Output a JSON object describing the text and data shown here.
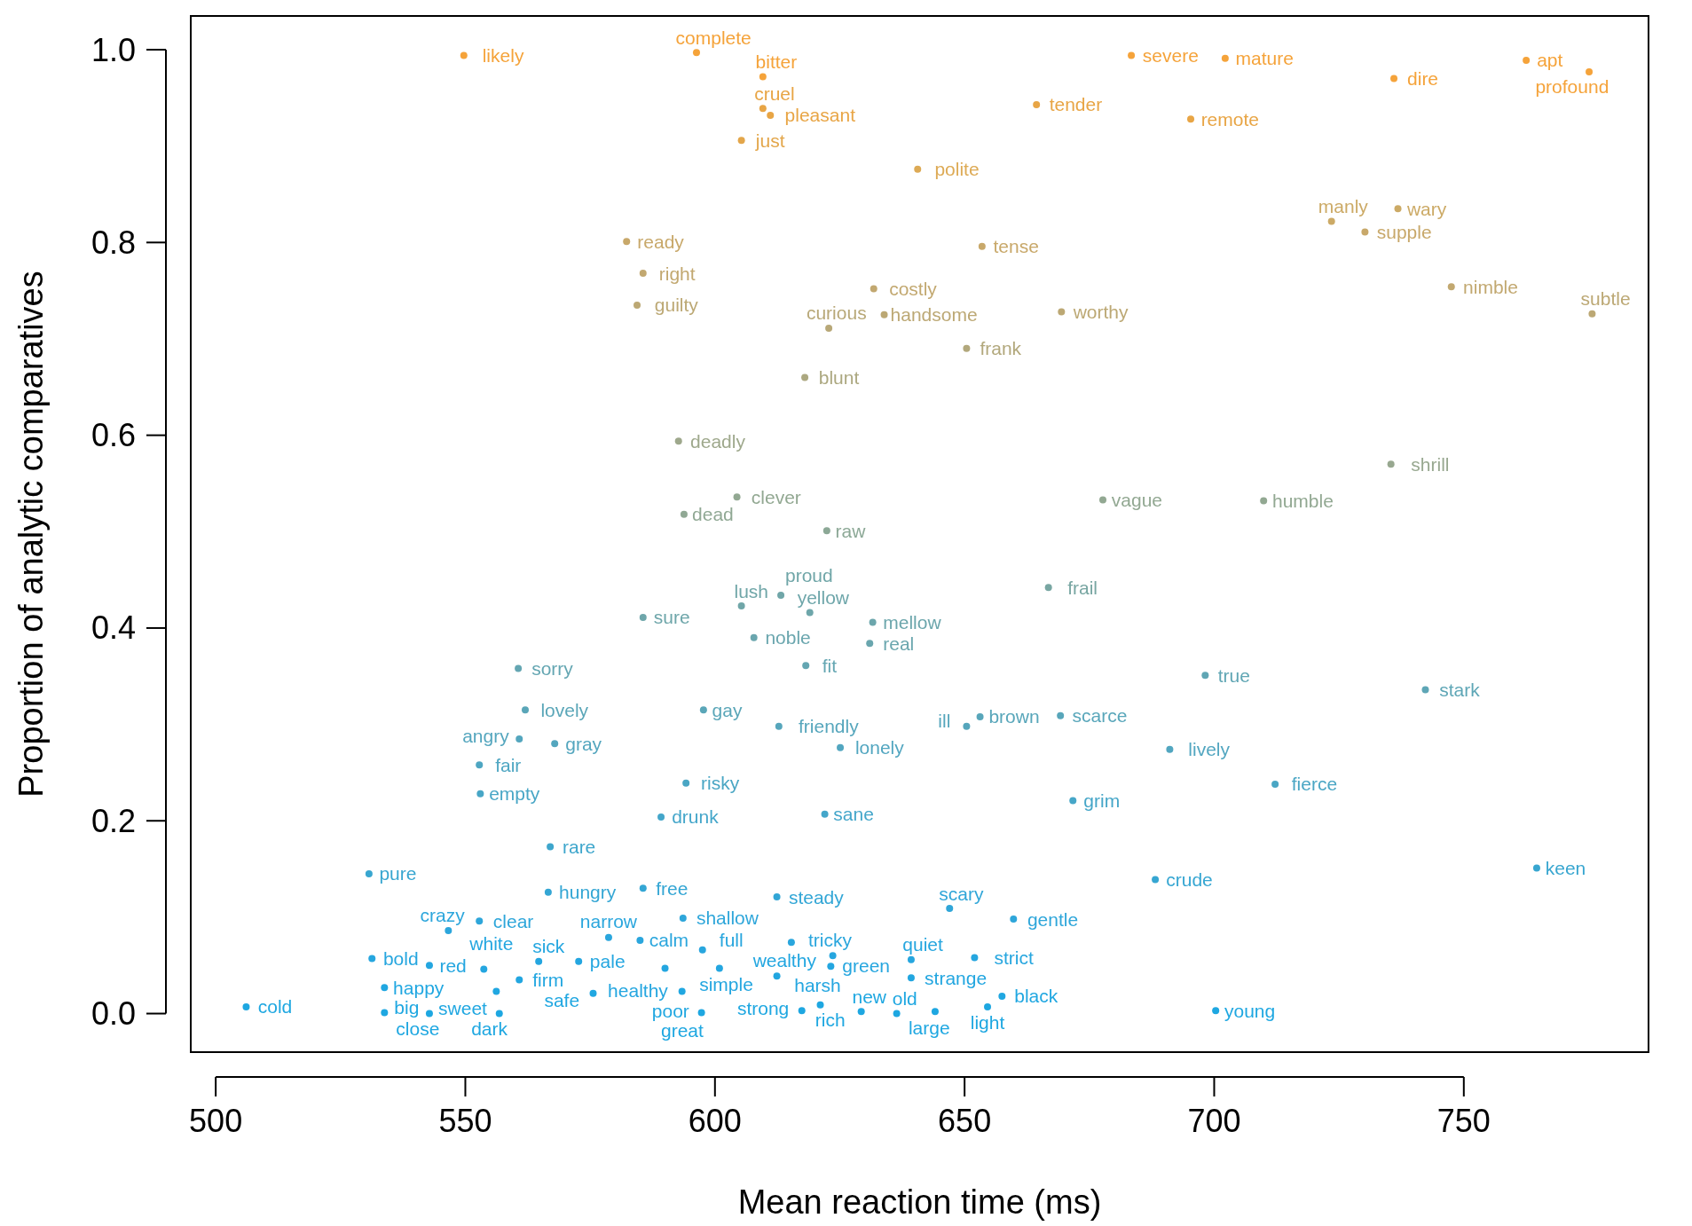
{
  "chart_data": {
    "type": "scatter",
    "xlabel": "Mean reaction time (ms)",
    "ylabel": "Proportion of analytic comparatives",
    "xlim": [
      495,
      787
    ],
    "ylim": [
      -0.04,
      1.035
    ],
    "xticks": [
      500,
      550,
      600,
      650,
      700,
      750
    ],
    "yticks": [
      {
        "value": 0,
        "label": "0.0"
      },
      0.2,
      0.4,
      0.6,
      0.8,
      {
        "value": 1,
        "label": "1.0"
      }
    ],
    "marker": "circle",
    "grid": false,
    "series": [
      {
        "x": [
          549.7,
          596.3,
          609.6,
          609.6,
          611.1,
          605.3,
          683.4,
          702.2,
          664.4,
          695.3,
          736.0,
          762.5,
          775.1,
          640.6
        ],
        "values": [
          0.994,
          0.997,
          0.972,
          0.939,
          0.932,
          0.906,
          0.994,
          0.991,
          0.943,
          0.928,
          0.97,
          0.989,
          0.977,
          0.876
        ],
        "value_labels": [
          "likely",
          "complete",
          "bitter",
          "cruel",
          "pleasant",
          "just",
          "severe",
          "mature",
          "tender",
          "remote",
          "dire",
          "apt",
          "profound",
          "polite"
        ],
        "colors": [
          "#f5a33a",
          "#f5a33a",
          "#f5a33a",
          "#e8a545",
          "#e8a545",
          "#e3a64a",
          "#f5a33a",
          "#f5a33a",
          "#e8a545",
          "#e8a545",
          "#f5a33a",
          "#f5a33a",
          "#f5a33a",
          "#ddaa55"
        ]
      },
      {
        "x": [
          582.3,
          585.6,
          584.4,
          653.5,
          631.8,
          633.9,
          622.8,
          669.4,
          650.4,
          618.0,
          723.5,
          736.8,
          730.2,
          747.5,
          775.7
        ],
        "values": [
          0.801,
          0.768,
          0.735,
          0.796,
          0.752,
          0.725,
          0.711,
          0.728,
          0.69,
          0.66,
          0.822,
          0.835,
          0.811,
          0.754,
          0.726
        ],
        "value_labels": [
          "ready",
          "right",
          "guilty",
          "tense",
          "costly",
          "handsome",
          "curious",
          "worthy",
          "frank",
          "blunt",
          "manly",
          "wary",
          "supple",
          "nimble",
          "subtle"
        ],
        "colors": [
          "#c8a86a",
          "#c2a870",
          "#bca874",
          "#c8a86a",
          "#c2a870",
          "#bca874",
          "#b8a878",
          "#bca874",
          "#b2a87c",
          "#aca880",
          "#ccaa66",
          "#ccaa66",
          "#c8a86a",
          "#c2a870",
          "#bca874"
        ]
      },
      {
        "x": [
          592.7,
          604.4,
          593.8,
          622.4,
          677.7,
          709.9,
          735.4,
          666.8
        ],
        "values": [
          0.594,
          0.536,
          0.518,
          0.501,
          0.533,
          0.532,
          0.57,
          0.442
        ],
        "value_labels": [
          "deadly",
          "clever",
          "dead",
          "raw",
          "vague",
          "humble",
          "shrill",
          "frail"
        ],
        "colors": [
          "#9ea88c",
          "#92a892",
          "#90a894",
          "#8ca896",
          "#92a892",
          "#92a892",
          "#98a890",
          "#78a6a2"
        ]
      },
      {
        "x": [
          585.6,
          605.3,
          613.2,
          619.0,
          631.6,
          607.8,
          631.0,
          618.2,
          560.6,
          562.0,
          597.7,
          612.8,
          560.8,
          567.9,
          625.1,
          552.8,
          553.0,
          594.2,
          589.2,
          622.0,
          567.0,
          653.1,
          650.4,
          669.2,
          671.7,
          698.2,
          691.1,
          712.2,
          742.3,
          688.2,
          764.6
        ],
        "values": [
          0.411,
          0.423,
          0.434,
          0.416,
          0.406,
          0.39,
          0.384,
          0.361,
          0.358,
          0.315,
          0.315,
          0.298,
          0.285,
          0.28,
          0.276,
          0.258,
          0.228,
          0.239,
          0.204,
          0.207,
          0.173,
          0.308,
          0.298,
          0.309,
          0.221,
          0.351,
          0.274,
          0.238,
          0.336,
          0.139,
          0.151
        ],
        "value_labels": [
          "sure",
          "lush",
          "proud",
          "yellow",
          "mellow",
          "noble",
          "real",
          "fit",
          "sorry",
          "lovely",
          "gay",
          "friendly",
          "angry",
          "gray",
          "lonely",
          "fair",
          "empty",
          "risky",
          "drunk",
          "sane",
          "rare",
          "brown",
          "ill",
          "scarce",
          "grim",
          "true",
          "lively",
          "fierce",
          "stark",
          "crude",
          "keen"
        ],
        "colors": [
          "#6ea6aa",
          "#70a6a8",
          "#70a6a8",
          "#6ea6aa",
          "#6ca6ac",
          "#6aa6ae",
          "#6aa6ae",
          "#64a6b2",
          "#64a6b2",
          "#5aa6b8",
          "#5aa6b8",
          "#56a6bc",
          "#54a6be",
          "#54a6be",
          "#52a6c0",
          "#4ea6c2",
          "#48a6c6",
          "#4aa6c4",
          "#44a6ca",
          "#44a6ca",
          "#3ea6cc",
          "#58a6ba",
          "#56a6bc",
          "#58a6ba",
          "#46a6c8",
          "#60a6b4",
          "#52a6c0",
          "#4aa6c4",
          "#5ea6b6",
          "#36a6d2",
          "#38a6d0"
        ]
      },
      {
        "x": [
          700.3,
          530.7,
          566.6,
          585.6,
          612.4,
          647.0,
          659.8,
          593.6,
          552.8,
          546.6,
          578.7,
          585.0,
          597.5,
          615.3,
          623.6,
          639.3,
          652.0,
          531.3,
          542.8,
          553.7,
          564.7,
          572.7,
          560.8,
          590.0,
          600.9,
          612.4,
          623.2,
          639.3,
          533.8,
          556.2,
          575.6,
          593.4,
          657.5,
          654.6,
          533.8,
          542.8,
          556.8,
          597.3,
          617.4,
          621.1,
          629.3,
          636.4,
          644.1,
          506.1
        ],
        "values": [
          0.003,
          0.145,
          0.126,
          0.13,
          0.121,
          0.109,
          0.098,
          0.099,
          0.096,
          0.086,
          0.079,
          0.076,
          0.066,
          0.074,
          0.06,
          0.056,
          0.058,
          0.057,
          0.05,
          0.046,
          0.054,
          0.054,
          0.035,
          0.047,
          0.047,
          0.039,
          0.049,
          0.037,
          0.027,
          0.023,
          0.021,
          0.023,
          0.018,
          0.007,
          0.001,
          0,
          0,
          0.001,
          0.003,
          0.009,
          0.002,
          0,
          0.002,
          0.007
        ],
        "value_labels": [
          "young",
          "pure",
          "hungry",
          "free",
          "steady",
          "scary",
          "gentle",
          "shallow",
          "clear",
          "crazy",
          "narrow",
          "calm",
          "full",
          "tricky",
          "green",
          "quiet",
          "strict",
          "bold",
          "red",
          "white",
          "sick",
          "pale",
          "firm",
          "healthy",
          "simple",
          "wealthy",
          "harsh",
          "strange",
          "happy",
          "sweet",
          "safe",
          "poor",
          "black",
          "light",
          "big",
          "close",
          "dark",
          "great",
          "strong",
          "rich",
          "new",
          "old",
          "large",
          "cold"
        ],
        "colors": [
          "#1ea7e1",
          "#38a6d0",
          "#34a6d4",
          "#34a6d4",
          "#32a6d6",
          "#30a6d8",
          "#2ea6da",
          "#2ea6da",
          "#2ea6da",
          "#2ca6dc",
          "#2aa6dd",
          "#2aa6dd",
          "#28a6de",
          "#2aa6dd",
          "#26a6df",
          "#26a6df",
          "#26a6df",
          "#26a6df",
          "#24a6e0",
          "#24a6e0",
          "#24a6e0",
          "#24a6e0",
          "#22a6e0",
          "#24a6e0",
          "#24a6e0",
          "#22a6e0",
          "#24a6e0",
          "#22a6e0",
          "#20a7e1",
          "#20a7e1",
          "#20a7e1",
          "#20a7e1",
          "#20a7e1",
          "#1ea7e1",
          "#1ea7e1",
          "#1ea7e1",
          "#1ea7e1",
          "#1ea7e1",
          "#1ea7e1",
          "#1ea7e1",
          "#1ea7e1",
          "#1ea7e1",
          "#1ea7e1",
          "#1ea7e1"
        ]
      }
    ]
  }
}
